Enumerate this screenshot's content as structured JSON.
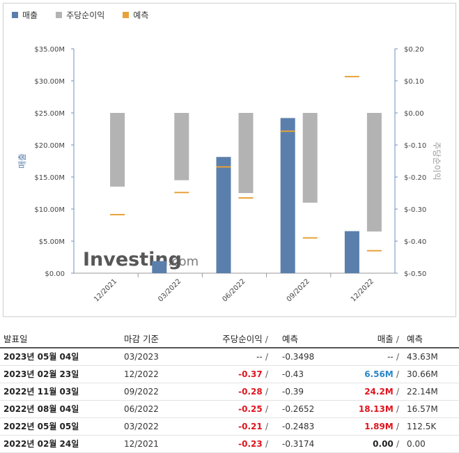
{
  "legend": {
    "revenue": "매출",
    "eps": "주당순이익",
    "forecast": "예측"
  },
  "colors": {
    "revenue": "#5b7fac",
    "eps": "#b3b3b3",
    "forecast": "#e8a23a",
    "axis": "#6e8fbf"
  },
  "watermark": {
    "brand": "Investing",
    "suffix": ".com"
  },
  "chart_data": {
    "type": "bar",
    "categories": [
      "12/2021",
      "03/2022",
      "06/2022",
      "09/2022",
      "12/2022"
    ],
    "y_left": {
      "label": "매출",
      "ticks": [
        "$35.00M",
        "$30.00M",
        "$25.00M",
        "$20.00M",
        "$15.00M",
        "$10.00M",
        "$5.00M",
        "$0.00"
      ],
      "range": [
        0,
        35
      ]
    },
    "y_right": {
      "label": "주당순이익",
      "ticks": [
        "$0.20",
        "$0.10",
        "$0.00",
        "$-0.10",
        "$-0.20",
        "$-0.30",
        "$-0.40",
        "$-0.50"
      ],
      "range": [
        -0.5,
        0.2
      ]
    },
    "series": [
      {
        "name": "매출",
        "axis": "left",
        "values": [
          0.0,
          1.89,
          18.13,
          24.2,
          6.56
        ]
      },
      {
        "name": "주당순이익",
        "axis": "right",
        "values": [
          -0.23,
          -0.21,
          -0.25,
          -0.28,
          -0.37
        ]
      },
      {
        "name": "예측",
        "kind": "revenue_forecast",
        "axis": "left",
        "values": [
          0.0,
          0.1125,
          16.57,
          22.14,
          30.66
        ]
      },
      {
        "name": "예측",
        "kind": "eps_forecast",
        "axis": "right",
        "values": [
          -0.3174,
          -0.2483,
          -0.2652,
          -0.39,
          -0.43
        ]
      }
    ],
    "grid": false,
    "legend_position": "top-left"
  },
  "table": {
    "headers": {
      "date": "발표일",
      "period": "마감 기준",
      "eps": "주당순이익",
      "sep": "/",
      "eps_forecast": "예측",
      "revenue": "매출",
      "revenue_forecast": "예측"
    },
    "rows": [
      {
        "date": "2023년 05월 04일",
        "period": "03/2023",
        "eps": "--",
        "eps_forecast": "-0.3498",
        "revenue": "--",
        "revenue_forecast": "43.63M",
        "eps_style": "plain",
        "rev_style": "plain"
      },
      {
        "date": "2023년 02월 23일",
        "period": "12/2022",
        "eps": "-0.37",
        "eps_forecast": "-0.43",
        "revenue": "6.56M",
        "revenue_forecast": "30.66M",
        "eps_style": "red",
        "rev_style": "blue"
      },
      {
        "date": "2022년 11월 03일",
        "period": "09/2022",
        "eps": "-0.28",
        "eps_forecast": "-0.39",
        "revenue": "24.2M",
        "revenue_forecast": "22.14M",
        "eps_style": "red",
        "rev_style": "red"
      },
      {
        "date": "2022년 08월 04일",
        "period": "06/2022",
        "eps": "-0.25",
        "eps_forecast": "-0.2652",
        "revenue": "18.13M",
        "revenue_forecast": "16.57M",
        "eps_style": "red",
        "rev_style": "red"
      },
      {
        "date": "2022년 05월 05일",
        "period": "03/2022",
        "eps": "-0.21",
        "eps_forecast": "-0.2483",
        "revenue": "1.89M",
        "revenue_forecast": "112.5K",
        "eps_style": "red",
        "rev_style": "red"
      },
      {
        "date": "2022년 02월 24일",
        "period": "12/2021",
        "eps": "-0.23",
        "eps_forecast": "-0.3174",
        "revenue": "0.00",
        "revenue_forecast": "0.00",
        "eps_style": "red",
        "rev_style": "dark"
      }
    ]
  }
}
